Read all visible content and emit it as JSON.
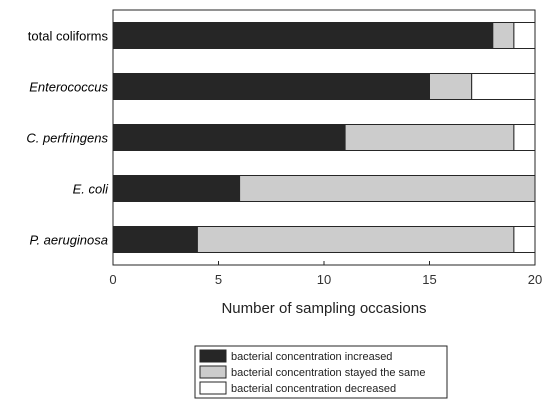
{
  "chart_data": {
    "type": "bar",
    "orientation": "horizontal",
    "stacked": true,
    "categories": [
      "total coliforms",
      "Enterococcus",
      "C. perfringens",
      "E. coli",
      "P. aeruginosa"
    ],
    "italic_categories": [
      "Enterococcus",
      "C. perfringens",
      "E. coli",
      "P. aeruginosa"
    ],
    "series": [
      {
        "name": "bacterial concentration increased",
        "color": "#262626",
        "values": [
          18,
          15,
          11,
          6,
          4
        ]
      },
      {
        "name": "bacterial concentration stayed the same",
        "color": "#cccccc",
        "values": [
          1,
          2,
          8,
          14,
          15
        ]
      },
      {
        "name": "bacterial concentration decreased",
        "color": "#ffffff",
        "values": [
          1,
          3,
          1,
          0,
          1
        ]
      }
    ],
    "xlabel": "Number of sampling occasions",
    "xlim": [
      0,
      20
    ],
    "xticks": [
      0,
      5,
      10,
      15,
      20
    ],
    "grid": false,
    "legend_position": "bottom"
  }
}
